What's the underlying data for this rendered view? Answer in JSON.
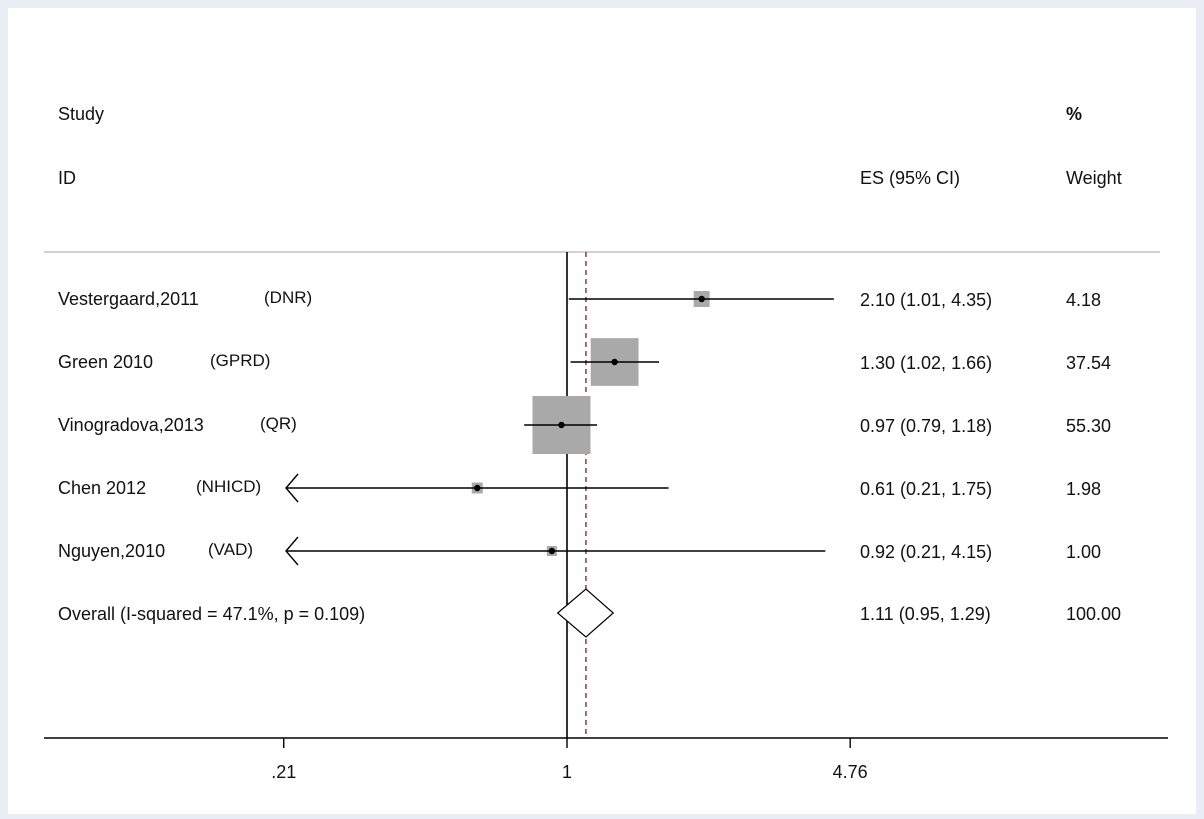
{
  "colors": {
    "background": "#e9eef5",
    "panel": "#ffffff",
    "weight_box": "#a9a9a9",
    "line": "#000000",
    "overall_reference_line": "#8b2c2c"
  },
  "header": {
    "study_line1": "Study",
    "study_line2": "ID",
    "es_header": "ES (95% CI)",
    "weight_line1": "%",
    "weight_line2": "Weight"
  },
  "chart_data": {
    "type": "forest",
    "x_scale": "log",
    "x_ticks": [
      0.21,
      1,
      4.76
    ],
    "x_tick_labels": [
      ".21",
      "1",
      "4.76"
    ],
    "null_line": 1,
    "studies": [
      {
        "name": "Vestergaard,2011",
        "source": "(DNR)",
        "es": 2.1,
        "lo": 1.01,
        "hi": 4.35,
        "es_label": "2.10 (1.01, 4.35)",
        "weight": 4.18,
        "weight_label": "4.18",
        "arrow_left": false,
        "arrow_right": false
      },
      {
        "name": "Green 2010",
        "source": "(GPRD)",
        "es": 1.3,
        "lo": 1.02,
        "hi": 1.66,
        "es_label": "1.30 (1.02, 1.66)",
        "weight": 37.54,
        "weight_label": "37.54",
        "arrow_left": false,
        "arrow_right": false
      },
      {
        "name": "Vinogradova,2013",
        "source": "(QR)",
        "es": 0.97,
        "lo": 0.79,
        "hi": 1.18,
        "es_label": "0.97 (0.79, 1.18)",
        "weight": 55.3,
        "weight_label": "55.30",
        "arrow_left": false,
        "arrow_right": false
      },
      {
        "name": "Chen 2012",
        "source": "(NHICD)",
        "es": 0.61,
        "lo": 0.21,
        "hi": 1.75,
        "es_label": "0.61 (0.21, 1.75)",
        "weight": 1.98,
        "weight_label": "1.98",
        "arrow_left": true,
        "arrow_right": false
      },
      {
        "name": "Nguyen,2010",
        "source": "(VAD)",
        "es": 0.92,
        "lo": 0.21,
        "hi": 4.15,
        "es_label": "0.92 (0.21, 4.15)",
        "weight": 1.0,
        "weight_label": "1.00",
        "arrow_left": true,
        "arrow_right": false
      }
    ],
    "overall": {
      "label": "Overall  (I-squared = 47.1%, p = 0.109)",
      "es": 1.11,
      "lo": 0.95,
      "hi": 1.29,
      "es_label": "1.11 (0.95, 1.29)",
      "weight_label": "100.00"
    }
  }
}
